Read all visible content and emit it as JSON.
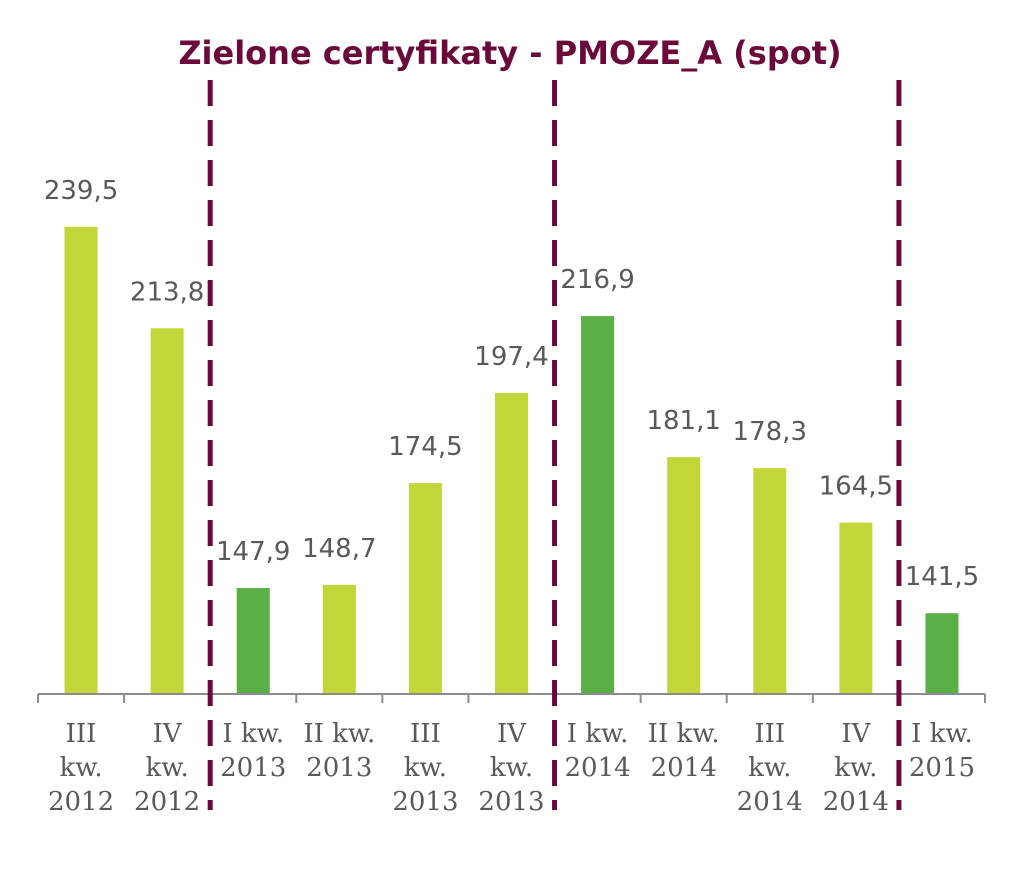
{
  "chart_data": {
    "type": "bar",
    "title": "Zielone certyfikaty - PMOZE_A (spot)",
    "xlabel": "",
    "ylabel": "",
    "categories": [
      [
        "III",
        "kw.",
        "2012"
      ],
      [
        "IV",
        "kw.",
        "2012"
      ],
      [
        "I kw.",
        "2013"
      ],
      [
        "II kw.",
        "2013"
      ],
      [
        "III",
        "kw.",
        "2013"
      ],
      [
        "IV",
        "kw.",
        "2013"
      ],
      [
        "I kw.",
        "2014"
      ],
      [
        "II kw.",
        "2014"
      ],
      [
        "III",
        "kw.",
        "2014"
      ],
      [
        "IV",
        "kw.",
        "2014"
      ],
      [
        "I kw.",
        "2015"
      ]
    ],
    "values": [
      239.5,
      213.8,
      147.9,
      148.7,
      174.5,
      197.4,
      216.9,
      181.1,
      178.3,
      164.5,
      141.5
    ],
    "value_labels": [
      "239,5",
      "213,8",
      "147,9",
      "148,7",
      "174,5",
      "197,4",
      "216,9",
      "181,1",
      "178,3",
      "164,5",
      "141,5"
    ],
    "highlight": [
      false,
      false,
      true,
      false,
      false,
      false,
      true,
      false,
      false,
      false,
      true
    ],
    "year_dividers_after": [
      1,
      5,
      9
    ],
    "ylim": [
      121,
      250
    ],
    "grid": false,
    "legend": "none",
    "colors": {
      "bar": "#c2d63a",
      "bar_highlight": "#5aaf47",
      "divider": "#6b0a3a",
      "title": "#6b0a3a",
      "text": "#595959",
      "axis": "#8c8c8c"
    }
  }
}
